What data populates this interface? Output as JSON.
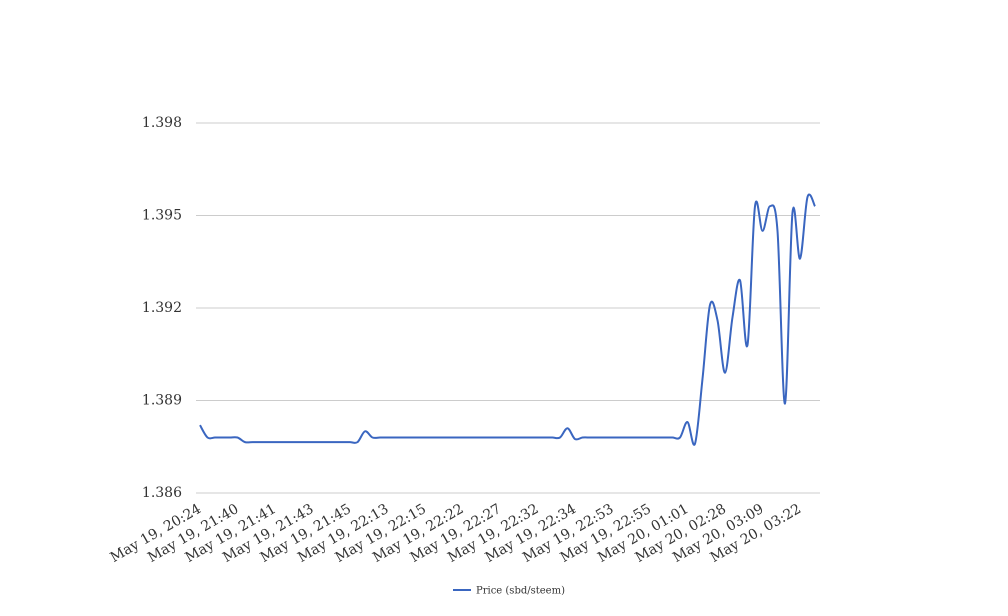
{
  "chart_data": {
    "type": "line",
    "categories": [
      "May 19, 20:24",
      null,
      null,
      null,
      null,
      "May 19, 21:40",
      null,
      null,
      null,
      null,
      "May 19, 21:41",
      null,
      null,
      null,
      null,
      "May 19, 21:43",
      null,
      null,
      null,
      null,
      "May 19, 21:45",
      null,
      null,
      null,
      null,
      "May 19, 22:13",
      null,
      null,
      null,
      null,
      "May 19, 22:15",
      null,
      null,
      null,
      null,
      "May 19, 22:22",
      null,
      null,
      null,
      null,
      "May 19, 22:27",
      null,
      null,
      null,
      null,
      "May 19, 22:32",
      null,
      null,
      null,
      null,
      "May 19, 22:34",
      null,
      null,
      null,
      null,
      "May 19, 22:53",
      null,
      null,
      null,
      null,
      "May 19, 22:55",
      null,
      null,
      null,
      null,
      "May 20, 01:01",
      null,
      null,
      null,
      null,
      "May 20, 02:28",
      null,
      null,
      null,
      null,
      "May 20, 03:09",
      null,
      null,
      null,
      null,
      "May 20, 03:22",
      null,
      null
    ],
    "series": [
      {
        "name": "Price (sbd/steem)",
        "color": "#3a66c0",
        "values": [
          1.3882,
          1.3878,
          1.3878,
          1.3878,
          1.3878,
          1.3878,
          1.38765,
          1.38765,
          1.38765,
          1.38765,
          1.38765,
          1.38765,
          1.38765,
          1.38765,
          1.38765,
          1.38765,
          1.38765,
          1.38765,
          1.38765,
          1.38765,
          1.38765,
          1.38765,
          1.388,
          1.3878,
          1.3878,
          1.3878,
          1.3878,
          1.3878,
          1.3878,
          1.3878,
          1.3878,
          1.3878,
          1.3878,
          1.3878,
          1.3878,
          1.3878,
          1.3878,
          1.3878,
          1.3878,
          1.3878,
          1.3878,
          1.3878,
          1.3878,
          1.3878,
          1.3878,
          1.3878,
          1.3878,
          1.3878,
          1.3878,
          1.3881,
          1.38775,
          1.3878,
          1.3878,
          1.3878,
          1.3878,
          1.3878,
          1.3878,
          1.3878,
          1.3878,
          1.3878,
          1.3878,
          1.3878,
          1.3878,
          1.3878,
          1.3878,
          1.3883,
          1.3876,
          1.3897,
          1.3921,
          1.3916,
          1.3899,
          1.3917,
          1.3929,
          1.3908,
          1.3953,
          1.3945,
          1.3953,
          1.3945,
          1.3889,
          1.3951,
          1.3936,
          1.3956,
          1.3953
        ]
      }
    ],
    "ylim": [
      1.386,
      1.398
    ],
    "yticks": [
      1.386,
      1.389,
      1.392,
      1.395,
      1.398
    ],
    "grid": true,
    "legend": "bottom",
    "smooth": true
  }
}
